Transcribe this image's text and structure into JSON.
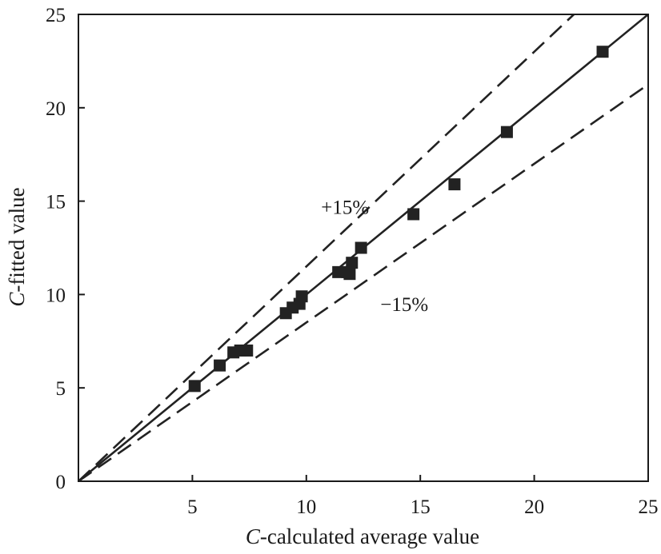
{
  "chart_data": {
    "type": "scatter",
    "title": "",
    "xlabel": {
      "italic": "C",
      "rest": "-calculated average value"
    },
    "ylabel": {
      "italic": "C",
      "rest": "-fitted value"
    },
    "xlim": [
      0,
      25
    ],
    "ylim": [
      0,
      25
    ],
    "xticks": [
      5,
      10,
      15,
      20,
      25
    ],
    "yticks": [
      0,
      5,
      10,
      15,
      20,
      25
    ],
    "grid": false,
    "series": [
      {
        "name": "data points",
        "marker": "square",
        "color": "#222222",
        "points": [
          [
            5.1,
            5.1
          ],
          [
            6.2,
            6.2
          ],
          [
            6.8,
            6.9
          ],
          [
            7.1,
            7.0
          ],
          [
            7.4,
            7.0
          ],
          [
            9.1,
            9.0
          ],
          [
            9.4,
            9.3
          ],
          [
            9.7,
            9.5
          ],
          [
            9.8,
            9.9
          ],
          [
            11.4,
            11.2
          ],
          [
            11.8,
            11.2
          ],
          [
            11.9,
            11.1
          ],
          [
            12.0,
            11.7
          ],
          [
            12.4,
            12.5
          ],
          [
            14.7,
            14.3
          ],
          [
            16.5,
            15.9
          ],
          [
            18.8,
            18.7
          ],
          [
            23.0,
            23.0
          ]
        ]
      }
    ],
    "reference_lines": [
      {
        "name": "1:1 line",
        "slope": 1.0,
        "style": "solid"
      },
      {
        "name": "+15% bound",
        "slope": 1.15,
        "style": "dashed"
      },
      {
        "name": "-15% bound",
        "slope": 0.85,
        "style": "dashed"
      }
    ],
    "annotations": [
      {
        "text": "+15%",
        "x": 11.7,
        "y": 14.7
      },
      {
        "text": "−15%",
        "x": 14.3,
        "y": 9.5
      }
    ]
  }
}
